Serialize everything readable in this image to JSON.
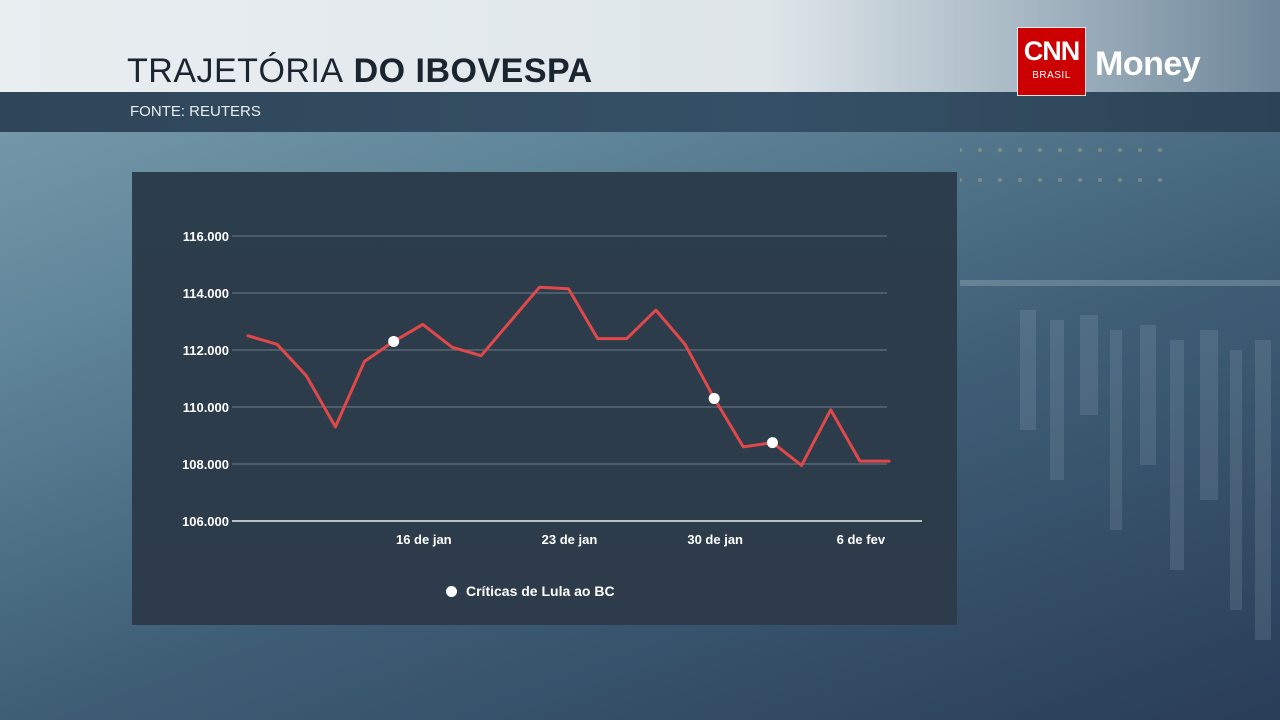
{
  "header": {
    "title_light": "TRAJETÓRIA",
    "title_bold": "DO IBOVESPA",
    "source": "FONTE: REUTERS"
  },
  "logo": {
    "cnn": "CNN",
    "brasil": "BRASIL",
    "money": "Money"
  },
  "colors": {
    "line": "#e0484a",
    "marker": "#ffffff",
    "grid": "#6b7b88"
  },
  "legend": {
    "label": "Críticas de Lula ao BC"
  },
  "chart_data": {
    "type": "line",
    "ylim": [
      106000,
      116000
    ],
    "yticks": [
      {
        "value": 106000,
        "label": "106.000"
      },
      {
        "value": 108000,
        "label": "108.000"
      },
      {
        "value": 110000,
        "label": "110.000"
      },
      {
        "value": 112000,
        "label": "112.000"
      },
      {
        "value": 114000,
        "label": "114.000"
      },
      {
        "value": 116000,
        "label": "116.000"
      }
    ],
    "xticks": [
      {
        "index": 6,
        "label": "16 de jan"
      },
      {
        "index": 11,
        "label": "23 de jan"
      },
      {
        "index": 16,
        "label": "30 de jan"
      },
      {
        "index": 21,
        "label": "6 de fev"
      }
    ],
    "grid": true,
    "series": [
      {
        "values": [
          112500,
          112200,
          111100,
          109300,
          111600,
          112300,
          112900,
          112100,
          111800,
          113000,
          114200,
          114150,
          112400,
          112400,
          113400,
          112200,
          110300,
          108600,
          108750,
          107950,
          109900,
          108100,
          108100
        ]
      }
    ],
    "markers": [
      {
        "index": 5,
        "value": 112300
      },
      {
        "index": 16,
        "value": 110300
      },
      {
        "index": 18,
        "value": 108750
      }
    ],
    "legend": "Críticas de Lula ao BC",
    "legend_position": "bottom"
  }
}
